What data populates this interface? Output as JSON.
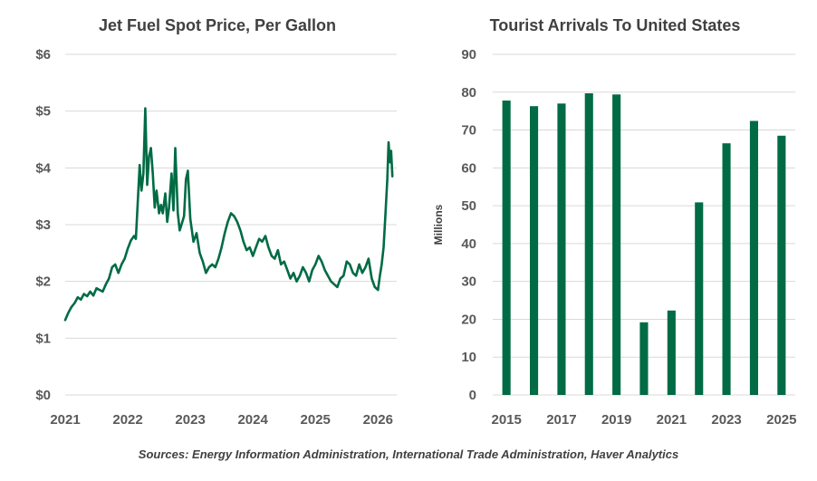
{
  "chart_data": [
    {
      "type": "line",
      "title": "Jet Fuel Spot Price, Per Gallon",
      "xlabel": "",
      "ylabel": "",
      "xlim": [
        2021,
        2026.3
      ],
      "ylim": [
        0,
        6
      ],
      "x_ticks": [
        2021,
        2022,
        2023,
        2024,
        2025,
        2026
      ],
      "x_tick_labels": [
        "2021",
        "2022",
        "2023",
        "2024",
        "2025",
        "2026"
      ],
      "y_ticks": [
        0,
        1,
        2,
        3,
        4,
        5,
        6
      ],
      "y_tick_labels": [
        "$0",
        "$1",
        "$2",
        "$3",
        "$4",
        "$5",
        "$6"
      ],
      "grid": "horizontal",
      "color": "#006B45",
      "series": [
        {
          "name": "Jet Fuel Spot Price",
          "x": [
            2021.0,
            2021.05,
            2021.1,
            2021.15,
            2021.2,
            2021.25,
            2021.3,
            2021.35,
            2021.4,
            2021.45,
            2021.5,
            2021.55,
            2021.6,
            2021.65,
            2021.7,
            2021.75,
            2021.8,
            2021.85,
            2021.9,
            2021.95,
            2022.0,
            2022.05,
            2022.1,
            2022.13,
            2022.16,
            2022.19,
            2022.22,
            2022.25,
            2022.28,
            2022.31,
            2022.34,
            2022.37,
            2022.4,
            2022.43,
            2022.46,
            2022.5,
            2022.53,
            2022.56,
            2022.6,
            2022.63,
            2022.66,
            2022.7,
            2022.73,
            2022.76,
            2022.8,
            2022.83,
            2022.86,
            2022.9,
            2022.93,
            2022.96,
            2023.0,
            2023.05,
            2023.1,
            2023.15,
            2023.2,
            2023.25,
            2023.3,
            2023.35,
            2023.4,
            2023.45,
            2023.5,
            2023.55,
            2023.6,
            2023.65,
            2023.7,
            2023.75,
            2023.8,
            2023.85,
            2023.9,
            2023.95,
            2024.0,
            2024.05,
            2024.1,
            2024.15,
            2024.2,
            2024.25,
            2024.3,
            2024.35,
            2024.4,
            2024.45,
            2024.5,
            2024.55,
            2024.6,
            2024.65,
            2024.7,
            2024.75,
            2024.8,
            2024.85,
            2024.9,
            2024.95,
            2025.0,
            2025.05,
            2025.1,
            2025.15,
            2025.2,
            2025.25,
            2025.3,
            2025.35,
            2025.4,
            2025.45,
            2025.5,
            2025.55,
            2025.6,
            2025.65,
            2025.7,
            2025.75,
            2025.8,
            2025.85,
            2025.9,
            2025.95,
            2026.0,
            2026.03,
            2026.06,
            2026.09,
            2026.12,
            2026.15,
            2026.17,
            2026.19,
            2026.21,
            2026.23
          ],
          "y": [
            1.32,
            1.45,
            1.55,
            1.62,
            1.72,
            1.68,
            1.78,
            1.74,
            1.82,
            1.75,
            1.88,
            1.85,
            1.82,
            1.95,
            2.05,
            2.25,
            2.3,
            2.15,
            2.3,
            2.4,
            2.58,
            2.72,
            2.8,
            2.75,
            3.4,
            4.05,
            3.6,
            3.9,
            5.05,
            3.7,
            4.2,
            4.35,
            3.9,
            3.3,
            3.6,
            3.2,
            3.35,
            3.2,
            3.55,
            3.05,
            3.3,
            3.9,
            3.25,
            4.35,
            3.2,
            2.9,
            3.0,
            3.15,
            3.8,
            3.95,
            3.1,
            2.7,
            2.85,
            2.5,
            2.35,
            2.15,
            2.25,
            2.3,
            2.25,
            2.4,
            2.6,
            2.85,
            3.05,
            3.2,
            3.15,
            3.05,
            2.9,
            2.7,
            2.55,
            2.6,
            2.45,
            2.6,
            2.75,
            2.7,
            2.8,
            2.6,
            2.45,
            2.4,
            2.55,
            2.3,
            2.35,
            2.2,
            2.05,
            2.15,
            2.0,
            2.1,
            2.25,
            2.15,
            2.0,
            2.2,
            2.3,
            2.45,
            2.35,
            2.2,
            2.1,
            2.0,
            1.95,
            1.9,
            2.05,
            2.1,
            2.35,
            2.3,
            2.15,
            2.1,
            2.3,
            2.15,
            2.25,
            2.4,
            2.05,
            1.9,
            1.85,
            2.1,
            2.3,
            2.6,
            3.2,
            3.8,
            4.45,
            4.1,
            4.3,
            3.85
          ]
        }
      ]
    },
    {
      "type": "bar",
      "title": "Tourist Arrivals To United States",
      "xlabel": "",
      "ylabel": "Millions",
      "ylim": [
        0,
        90
      ],
      "categories": [
        "2015",
        "2016",
        "2017",
        "2018",
        "2019",
        "2020",
        "2021",
        "2022",
        "2023",
        "2024",
        "2025"
      ],
      "x_tick_labels": [
        "2015",
        "2017",
        "2019",
        "2021",
        "2023",
        "2025"
      ],
      "y_ticks": [
        0,
        10,
        20,
        30,
        40,
        50,
        60,
        70,
        80,
        90
      ],
      "y_tick_labels": [
        "0",
        "10",
        "20",
        "30",
        "40",
        "50",
        "60",
        "70",
        "80",
        "90"
      ],
      "grid": "horizontal",
      "color": "#006B45",
      "series": [
        {
          "name": "Tourist Arrivals",
          "values": [
            77.8,
            76.3,
            77.0,
            79.7,
            79.4,
            19.2,
            22.3,
            50.9,
            66.5,
            72.4,
            68.5
          ]
        }
      ]
    }
  ],
  "footer": {
    "source": "Sources: Energy Information Administration, International Trade Administration, Haver Analytics"
  },
  "colors": {
    "series": "#006B45",
    "grid": "#D9D9D9",
    "text": "#404040"
  }
}
